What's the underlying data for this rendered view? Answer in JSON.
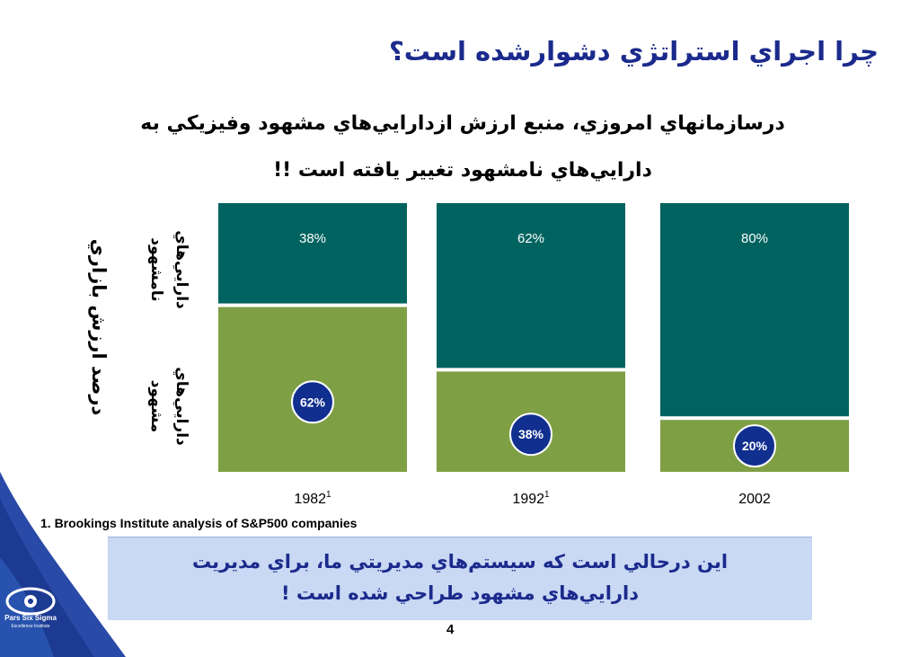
{
  "slide": {
    "title": "چرا اجراي استراتژي دشوارشده است؟",
    "subtitle_line1": "درسازمانهاي امروزي، منبع ارزش ازدارايي‌هاي مشهود وفيزيکي به",
    "subtitle_line2": "دارايي‌هاي نامشهود تغيير يافته است !!",
    "y_axis_label": "درصد ارزش بازاري",
    "intangible_label": "دارايي‌هاي نامشهود",
    "tangible_label": "دارايي‌هاي مشهود",
    "footnote": "1.  Brookings Institute analysis of S&P500 companies",
    "callout_line1": "اين درحالي است که سيستم‌هاي مديريتي ما، براي مديريت",
    "callout_line2": "دارايي‌هاي مشهود طراحي شده است !",
    "page_number": "4",
    "logo_name": "Pars Six Sigma",
    "logo_tagline": "Excellence Institute"
  },
  "colors": {
    "title": "#1b2a8c",
    "intangible": "#00635f",
    "tangible": "#7f9f45",
    "badge": "#102f8f",
    "callout_bg": "#c9d8f3"
  },
  "chart_data": {
    "type": "bar",
    "stacked": true,
    "categories": [
      "1982",
      "1992",
      "2002"
    ],
    "category_superscripts": [
      "1",
      "1",
      ""
    ],
    "series": [
      {
        "name": "دارايي‌هاي مشهود",
        "values": [
          62,
          38,
          20
        ],
        "labels": [
          "62%",
          "38%",
          "20%"
        ]
      },
      {
        "name": "دارايي‌هاي نامشهود",
        "values": [
          38,
          62,
          80
        ],
        "labels": [
          "38%",
          "62%",
          "80%"
        ]
      }
    ],
    "ylim": [
      0,
      100
    ],
    "ylabel": "درصد ارزش بازاري",
    "grid": false
  }
}
